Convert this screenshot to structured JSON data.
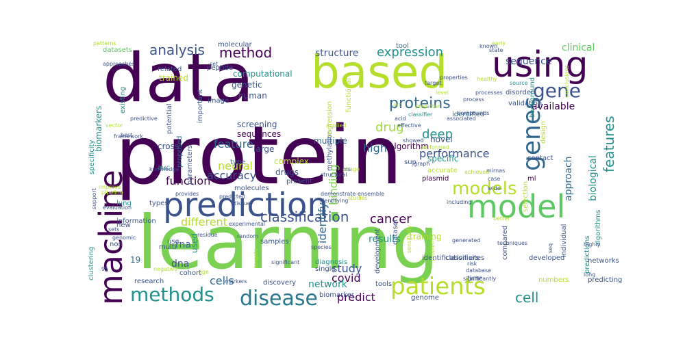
{
  "word_cloud": {
    "palette": [
      "#440154",
      "#3b528b",
      "#21918c",
      "#5ec962",
      "#b5de2b",
      "#fde725"
    ],
    "words": [
      {
        "text": "protein",
        "color": "#440154"
      },
      {
        "text": "learning",
        "color": "#7ad151"
      },
      {
        "text": "data",
        "color": "#440154"
      },
      {
        "text": "based",
        "color": "#b5de2b"
      },
      {
        "text": "using",
        "color": "#440154"
      },
      {
        "text": "machine",
        "color": "#440154"
      },
      {
        "text": "prediction",
        "color": "#3b528b"
      },
      {
        "text": "model",
        "color": "#5ec962"
      },
      {
        "text": "models",
        "color": "#b5de2b"
      },
      {
        "text": "methods",
        "color": "#21918c"
      },
      {
        "text": "disease",
        "color": "#2a788e"
      },
      {
        "text": "patients",
        "color": "#b5de2b"
      },
      {
        "text": "genes",
        "color": "#31688e"
      },
      {
        "text": "gene",
        "color": "#3b528b"
      },
      {
        "text": "proteins",
        "color": "#31688e"
      },
      {
        "text": "classification",
        "color": "#3b528b"
      },
      {
        "text": "expression",
        "color": "#21918c"
      },
      {
        "text": "analysis",
        "color": "#3b528b"
      },
      {
        "text": "method",
        "color": "#440154"
      },
      {
        "text": "structure",
        "color": "#3b528b"
      },
      {
        "text": "features",
        "color": "#21918c"
      },
      {
        "text": "cancer",
        "color": "#440154"
      },
      {
        "text": "cell",
        "color": "#21918c"
      },
      {
        "text": "drug",
        "color": "#a0da39"
      },
      {
        "text": "feature",
        "color": "#31688e"
      },
      {
        "text": "accuracy",
        "color": "#3b528b"
      },
      {
        "text": "function",
        "color": "#440154"
      },
      {
        "text": "neural",
        "color": "#b5de2b"
      },
      {
        "text": "deep",
        "color": "#21918c"
      },
      {
        "text": "performance",
        "color": "#3b528b"
      },
      {
        "text": "high",
        "color": "#31688e"
      },
      {
        "text": "available",
        "color": "#440154"
      },
      {
        "text": "sequence",
        "color": "#3b528b"
      },
      {
        "text": "clinical",
        "color": "#5ec962"
      },
      {
        "text": "biological",
        "color": "#21918c"
      },
      {
        "text": "approach",
        "color": "#31688e"
      },
      {
        "text": "results",
        "color": "#21918c"
      },
      {
        "text": "covid",
        "color": "#440154"
      },
      {
        "text": "study",
        "color": "#3b528b"
      },
      {
        "text": "cells",
        "color": "#31688e"
      },
      {
        "text": "different",
        "color": "#b5de2b"
      },
      {
        "text": "rna",
        "color": "#31688e"
      },
      {
        "text": "dna",
        "color": "#3b528b"
      },
      {
        "text": "network",
        "color": "#21918c"
      },
      {
        "text": "predict",
        "color": "#440154"
      },
      {
        "text": "binding",
        "color": "#7ad151"
      },
      {
        "text": "identify",
        "color": "#31688e"
      },
      {
        "text": "training",
        "color": "#b5de2b"
      },
      {
        "text": "19",
        "color": "#31688e"
      },
      {
        "text": "used",
        "color": "#21918c"
      },
      {
        "text": "biomarkers",
        "color": "#21918c"
      },
      {
        "text": "computational",
        "color": "#21918c"
      },
      {
        "text": "genetic",
        "color": "#3b528b"
      },
      {
        "text": "human",
        "color": "#3b528b"
      },
      {
        "text": "molecular",
        "color": "#3b528b"
      },
      {
        "text": "datasets",
        "color": "#5ec962"
      },
      {
        "text": "peptide",
        "color": "#3b528b"
      },
      {
        "text": "related",
        "color": "#3b528b"
      },
      {
        "text": "trained",
        "color": "#b5de2b"
      },
      {
        "text": "screening",
        "color": "#3b528b"
      },
      {
        "text": "sequences",
        "color": "#440154"
      },
      {
        "text": "large",
        "color": "#3b528b"
      },
      {
        "text": "multiple",
        "color": "#31688e"
      },
      {
        "text": "tool",
        "color": "#31688e"
      },
      {
        "text": "algorithm",
        "color": "#440154"
      },
      {
        "text": "identified",
        "color": "#31688e"
      },
      {
        "text": "novel",
        "color": "#3b528b"
      },
      {
        "text": "specific",
        "color": "#21918c"
      },
      {
        "text": "complex",
        "color": "#b5de2b"
      },
      {
        "text": "drugs",
        "color": "#3b528b"
      },
      {
        "text": "type",
        "color": "#31688e"
      },
      {
        "text": "cross",
        "color": "#3b528b"
      },
      {
        "text": "auc",
        "color": "#21918c"
      },
      {
        "text": "parameters",
        "color": "#3b528b"
      },
      {
        "text": "proposed",
        "color": "#31688e"
      },
      {
        "text": "lung",
        "color": "#21918c"
      },
      {
        "text": "new",
        "color": "#3b528b"
      },
      {
        "text": "information",
        "color": "#3b528b"
      },
      {
        "text": "types",
        "color": "#3b528b"
      },
      {
        "text": "multi",
        "color": "#3b528b"
      },
      {
        "text": "use",
        "color": "#3b528b"
      },
      {
        "text": "non",
        "color": "#3b528b"
      },
      {
        "text": "samples",
        "color": "#3b528b"
      },
      {
        "text": "research",
        "color": "#3b528b"
      },
      {
        "text": "cohort",
        "color": "#3b528b"
      },
      {
        "text": "discovery",
        "color": "#3b528b"
      },
      {
        "text": "clustering",
        "color": "#21918c"
      },
      {
        "text": "specificity",
        "color": "#21918c"
      },
      {
        "text": "existing",
        "color": "#21918c"
      },
      {
        "text": "important",
        "color": "#3b528b"
      },
      {
        "text": "potential",
        "color": "#3b528b"
      },
      {
        "text": "image",
        "color": "#3b528b"
      },
      {
        "text": "molecules",
        "color": "#3b528b"
      },
      {
        "text": "methylation",
        "color": "#3b528b"
      },
      {
        "text": "regression",
        "color": "#b5de2b"
      },
      {
        "text": "functional",
        "color": "#b5de2b"
      },
      {
        "text": "selection",
        "color": "#b5de2b"
      },
      {
        "text": "disorder",
        "color": "#3b528b"
      },
      {
        "text": "validation",
        "color": "#3b528b"
      },
      {
        "text": "background",
        "color": "#21918c"
      },
      {
        "text": "design",
        "color": "#b5de2b"
      },
      {
        "text": "contact",
        "color": "#3b528b"
      },
      {
        "text": "ml",
        "color": "#440154"
      },
      {
        "text": "algorithms",
        "color": "#21918c"
      },
      {
        "text": "predictions",
        "color": "#21918c"
      },
      {
        "text": "individual",
        "color": "#3b528b"
      },
      {
        "text": "developed",
        "color": "#3b528b"
      },
      {
        "text": "compared",
        "color": "#3b528b"
      },
      {
        "text": "sites",
        "color": "#3b528b"
      },
      {
        "text": "classifiers",
        "color": "#3b528b"
      },
      {
        "text": "identification",
        "color": "#3b528b"
      },
      {
        "text": "dataset",
        "color": "#3b528b"
      },
      {
        "text": "development",
        "color": "#3b528b"
      },
      {
        "text": "diagnosis",
        "color": "#21918c"
      },
      {
        "text": "single",
        "color": "#3b528b"
      },
      {
        "text": "biomarker",
        "color": "#3b528b"
      },
      {
        "text": "tools",
        "color": "#3b528b"
      },
      {
        "text": "numbers",
        "color": "#b5de2b"
      },
      {
        "text": "predicting",
        "color": "#3b528b"
      },
      {
        "text": "time",
        "color": "#3b528b"
      },
      {
        "text": "genome",
        "color": "#3b528b"
      },
      {
        "text": "networks",
        "color": "#3b528b"
      },
      {
        "text": "plasmid",
        "color": "#440154"
      },
      {
        "text": "present",
        "color": "#3b528b"
      },
      {
        "text": "accurate",
        "color": "#b5de2b"
      },
      {
        "text": "sup",
        "color": "#3b528b"
      },
      {
        "text": "set",
        "color": "#3b528b"
      },
      {
        "text": "approaches",
        "color": "#3b528b"
      },
      {
        "text": "patterns",
        "color": "#b5de2b"
      },
      {
        "text": "early",
        "color": "#b5de2b"
      },
      {
        "text": "art",
        "color": "#b5de2b"
      },
      {
        "text": "level",
        "color": "#b5de2b"
      },
      {
        "text": "properties",
        "color": "#3b528b"
      },
      {
        "text": "known",
        "color": "#3b528b"
      },
      {
        "text": "state",
        "color": "#3b528b"
      },
      {
        "text": "target",
        "color": "#3b528b"
      },
      {
        "text": "source",
        "color": "#21918c"
      },
      {
        "text": "healthy",
        "color": "#b5de2b"
      },
      {
        "text": "processes",
        "color": "#3b528b"
      },
      {
        "text": "conclusions",
        "color": "#b5de2b"
      },
      {
        "text": "process",
        "color": "#3b528b"
      },
      {
        "text": "classifier",
        "color": "#21918c"
      },
      {
        "text": "predictor",
        "color": "#b5de2b"
      },
      {
        "text": "compounds",
        "color": "#3b528b"
      },
      {
        "text": "associated",
        "color": "#3b528b"
      },
      {
        "text": "acid",
        "color": "#3b528b"
      },
      {
        "text": "effective",
        "color": "#3b528b"
      },
      {
        "text": "showed",
        "color": "#3b528b"
      },
      {
        "text": "predictive",
        "color": "#3b528b"
      },
      {
        "text": "best",
        "color": "#3b528b"
      },
      {
        "text": "applied",
        "color": "#b5de2b"
      },
      {
        "text": "performed",
        "color": "#b5de2b"
      },
      {
        "text": "graph",
        "color": "#3b528b"
      },
      {
        "text": "achieved",
        "color": "#b5de2b"
      },
      {
        "text": "mirnas",
        "color": "#3b528b"
      },
      {
        "text": "case",
        "color": "#3b528b"
      },
      {
        "text": "wide",
        "color": "#3b528b"
      },
      {
        "text": "ensemble",
        "color": "#3b528b"
      },
      {
        "text": "studies",
        "color": "#b5de2b"
      },
      {
        "text": "including",
        "color": "#3b528b"
      },
      {
        "text": "better",
        "color": "#b5de2b"
      },
      {
        "text": "generated",
        "color": "#3b528b"
      },
      {
        "text": "techniques",
        "color": "#3b528b"
      },
      {
        "text": "risk",
        "color": "#3b528b"
      },
      {
        "text": "database",
        "color": "#3b528b"
      },
      {
        "text": "highly",
        "color": "#3b528b"
      },
      {
        "text": "long",
        "color": "#3b528b"
      },
      {
        "text": "seq",
        "color": "#3b528b"
      },
      {
        "text": "problem",
        "color": "#b5de2b"
      },
      {
        "text": "sensitivity",
        "color": "#b5de2b"
      },
      {
        "text": "significantly",
        "color": "#3b528b"
      },
      {
        "text": "demonstrate",
        "color": "#3b528b"
      },
      {
        "text": "identifying",
        "color": "#3b528b"
      },
      {
        "text": "species",
        "color": "#3b528b"
      },
      {
        "text": "tissue",
        "color": "#3b528b"
      },
      {
        "text": "experimental",
        "color": "#3b528b"
      },
      {
        "text": "random",
        "color": "#3b528b"
      },
      {
        "text": "markers",
        "color": "#3b528b"
      },
      {
        "text": "targets",
        "color": "#b5de2b"
      },
      {
        "text": "significant",
        "color": "#3b528b"
      },
      {
        "text": "residue",
        "color": "#3b528b"
      },
      {
        "text": "age",
        "color": "#b5de2b"
      },
      {
        "text": "negative",
        "color": "#b5de2b"
      },
      {
        "text": "95",
        "color": "#3b528b"
      },
      {
        "text": "sets",
        "color": "#3b528b"
      },
      {
        "text": "genomic",
        "color": "#3b528b"
      },
      {
        "text": "evaluation",
        "color": "#3b528b"
      },
      {
        "text": "support",
        "color": "#3b528b"
      },
      {
        "text": "pipeline",
        "color": "#b5de2b"
      },
      {
        "text": "improve",
        "color": "#b5de2b"
      },
      {
        "text": "knowledge",
        "color": "#3b528b"
      },
      {
        "text": "framework",
        "color": "#3b528b"
      },
      {
        "text": "vector",
        "color": "#b5de2b"
      },
      {
        "text": "structural",
        "color": "#3b528b"
      },
      {
        "text": "provides",
        "color": "#3b528b"
      },
      {
        "text": "predicted",
        "color": "#3b528b"
      },
      {
        "text": "phage",
        "color": "#b5de2b"
      },
      {
        "text": "ms",
        "color": "#3b528b"
      }
    ]
  }
}
